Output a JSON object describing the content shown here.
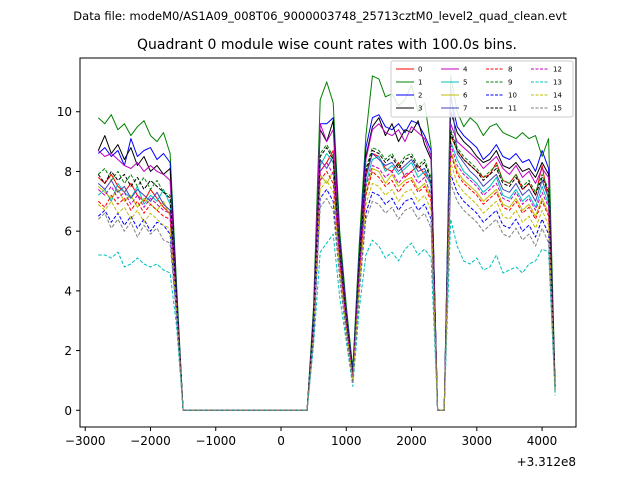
{
  "chart_data": {
    "type": "line",
    "suptitle": "Data file: modeM0/AS1A09_008T06_9000003748_25713cztM0_level2_quad_clean.evt",
    "title": "Quadrant 0 module wise count rates with 100.0s bins.",
    "xlabel": "",
    "ylabel": "",
    "x_offset_label": "+3.312e8",
    "xlim": [
      -3080,
      4520
    ],
    "ylim": [
      -0.56,
      11.8
    ],
    "xticks": [
      -3000,
      -2000,
      -1000,
      0,
      1000,
      2000,
      3000,
      4000
    ],
    "xtick_labels": [
      "−3000",
      "−2000",
      "−1000",
      "0",
      "1000",
      "2000",
      "3000",
      "4000"
    ],
    "yticks": [
      0,
      2,
      4,
      6,
      8,
      10
    ],
    "ytick_labels": [
      "0",
      "2",
      "4",
      "6",
      "8",
      "10"
    ],
    "legend_position": "upper right",
    "x": [
      -2800,
      -2700,
      -2600,
      -2500,
      -2400,
      -2300,
      -2200,
      -2100,
      -2000,
      -1900,
      -1800,
      -1700,
      -1600,
      -1500,
      -1400,
      -1300,
      -1200,
      -1100,
      -1000,
      -900,
      -800,
      -700,
      -600,
      -500,
      -400,
      -300,
      -200,
      -100,
      0,
      100,
      200,
      300,
      400,
      500,
      600,
      700,
      800,
      900,
      1000,
      1100,
      1200,
      1300,
      1400,
      1500,
      1600,
      1700,
      1800,
      1900,
      2000,
      2100,
      2200,
      2300,
      2400,
      2500,
      2600,
      2700,
      2800,
      2900,
      3000,
      3100,
      3200,
      3300,
      3400,
      3500,
      3600,
      3700,
      3800,
      3900,
      4000,
      4100,
      4200
    ],
    "series": [
      {
        "name": "0",
        "color": "#ff0000",
        "dash": false,
        "values": [
          7.8,
          7.6,
          7.9,
          7.5,
          7.3,
          7.6,
          7.2,
          7.0,
          7.4,
          7.1,
          6.8,
          6.6,
          3.8,
          0,
          0,
          0,
          0,
          0,
          0,
          0,
          0,
          0,
          0,
          0,
          0,
          0,
          0,
          0,
          0,
          0,
          0,
          0,
          0,
          3.0,
          8.0,
          8.3,
          8.7,
          5.4,
          3.2,
          1.3,
          4.9,
          7.9,
          8.6,
          8.5,
          8.1,
          8.0,
          8.3,
          7.8,
          8.0,
          8.2,
          7.9,
          7.6,
          0,
          0,
          9.2,
          8.7,
          8.4,
          8.2,
          8.0,
          7.8,
          7.9,
          8.3,
          7.7,
          7.6,
          7.9,
          7.4,
          7.6,
          7.2,
          8.2,
          7.0,
          0.8
        ]
      },
      {
        "name": "1",
        "color": "#008000",
        "dash": false,
        "values": [
          9.8,
          9.6,
          9.9,
          9.4,
          9.6,
          9.2,
          9.5,
          9.7,
          9.2,
          9.0,
          9.3,
          8.6,
          4.2,
          0,
          0,
          0,
          0,
          0,
          0,
          0,
          0,
          0,
          0,
          0,
          0,
          0,
          0,
          0,
          0,
          0,
          0,
          0,
          0,
          3.5,
          10.4,
          11.0,
          10.3,
          6.0,
          3.5,
          1.4,
          5.6,
          9.2,
          11.2,
          11.1,
          10.5,
          10.6,
          10.2,
          10.4,
          10.9,
          10.0,
          10.3,
          8.8,
          0,
          0,
          11.2,
          10.0,
          9.5,
          9.8,
          9.6,
          9.2,
          9.5,
          9.6,
          9.3,
          9.2,
          9.1,
          9.3,
          9.1,
          9.2,
          8.5,
          9.1,
          0.9
        ]
      },
      {
        "name": "2",
        "color": "#0000ff",
        "dash": false,
        "values": [
          8.6,
          8.8,
          8.5,
          8.7,
          8.2,
          9.1,
          8.5,
          8.7,
          8.8,
          8.4,
          8.6,
          8.3,
          3.9,
          0,
          0,
          0,
          0,
          0,
          0,
          0,
          0,
          0,
          0,
          0,
          0,
          0,
          0,
          0,
          0,
          0,
          0,
          0,
          0,
          3.2,
          9.6,
          9.6,
          9.8,
          5.7,
          3.3,
          1.3,
          5.2,
          8.8,
          9.8,
          9.9,
          9.5,
          9.4,
          9.6,
          9.3,
          9.7,
          9.6,
          9.2,
          8.7,
          0,
          0,
          10.5,
          9.5,
          9.2,
          9.0,
          8.8,
          8.4,
          8.6,
          8.9,
          8.5,
          8.4,
          8.6,
          8.3,
          8.4,
          8.0,
          8.7,
          8.1,
          0.8
        ]
      },
      {
        "name": "3",
        "color": "#000000",
        "dash": false,
        "values": [
          8.7,
          9.2,
          8.6,
          8.9,
          8.4,
          8.8,
          8.2,
          8.5,
          8.0,
          8.2,
          7.9,
          8.1,
          3.8,
          0,
          0,
          0,
          0,
          0,
          0,
          0,
          0,
          0,
          0,
          0,
          0,
          0,
          0,
          0,
          0,
          0,
          0,
          0,
          0,
          3.1,
          9.4,
          9.0,
          9.7,
          5.6,
          3.2,
          1.1,
          5.0,
          8.5,
          9.5,
          9.8,
          9.2,
          9.6,
          9.0,
          9.4,
          9.3,
          9.7,
          8.9,
          8.4,
          0,
          0,
          10.0,
          9.3,
          9.0,
          8.8,
          8.5,
          8.3,
          8.4,
          8.7,
          8.2,
          8.1,
          8.3,
          8.0,
          8.1,
          7.8,
          8.3,
          7.9,
          0.8
        ]
      },
      {
        "name": "4",
        "color": "#bf00bf",
        "dash": false,
        "values": [
          8.7,
          8.5,
          8.6,
          8.4,
          8.2,
          8.1,
          8.3,
          8.0,
          8.2,
          8.0,
          7.9,
          7.7,
          3.7,
          0,
          0,
          0,
          0,
          0,
          0,
          0,
          0,
          0,
          0,
          0,
          0,
          0,
          0,
          0,
          0,
          0,
          0,
          0,
          0,
          3.1,
          9.6,
          9.0,
          9.4,
          5.5,
          3.2,
          1.2,
          5.0,
          8.4,
          9.4,
          9.6,
          9.3,
          9.2,
          9.4,
          9.0,
          9.5,
          9.3,
          9.1,
          8.5,
          0,
          0,
          9.6,
          9.0,
          8.8,
          8.6,
          8.4,
          8.1,
          8.3,
          8.5,
          8.1,
          7.9,
          8.2,
          7.8,
          8.0,
          7.6,
          8.1,
          7.8,
          0.8
        ]
      },
      {
        "name": "5",
        "color": "#00bfbf",
        "dash": false,
        "values": [
          7.2,
          7.4,
          7.0,
          7.6,
          7.3,
          7.1,
          7.5,
          6.9,
          7.2,
          7.0,
          7.4,
          6.9,
          3.6,
          0,
          0,
          0,
          0,
          0,
          0,
          0,
          0,
          0,
          0,
          0,
          0,
          0,
          0,
          0,
          0,
          0,
          0,
          0,
          0,
          2.9,
          8.2,
          8.6,
          8.3,
          5.2,
          3.0,
          1.1,
          4.7,
          7.6,
          8.4,
          8.5,
          8.0,
          8.2,
          7.9,
          8.1,
          8.3,
          7.8,
          8.0,
          7.5,
          0,
          0,
          9.0,
          8.4,
          8.0,
          7.8,
          7.6,
          7.3,
          7.5,
          7.8,
          7.2,
          7.1,
          7.4,
          7.0,
          7.2,
          6.8,
          7.5,
          6.9,
          0.7
        ]
      },
      {
        "name": "6",
        "color": "#bfbf00",
        "dash": false,
        "values": [
          7.5,
          7.3,
          7.1,
          7.4,
          7.0,
          7.2,
          6.8,
          7.1,
          6.9,
          6.7,
          7.0,
          6.5,
          3.5,
          0,
          0,
          0,
          0,
          0,
          0,
          0,
          0,
          0,
          0,
          0,
          0,
          0,
          0,
          0,
          0,
          0,
          0,
          0,
          0,
          2.8,
          7.9,
          7.6,
          8.0,
          5.0,
          2.9,
          1.0,
          4.5,
          7.3,
          8.1,
          8.0,
          7.6,
          7.9,
          7.5,
          7.7,
          7.8,
          7.4,
          7.6,
          7.1,
          0,
          0,
          8.7,
          8.0,
          7.7,
          7.5,
          7.3,
          7.0,
          7.2,
          7.4,
          6.9,
          6.8,
          7.1,
          6.7,
          6.9,
          6.5,
          7.1,
          6.6,
          0.7
        ]
      },
      {
        "name": "7",
        "color": "#4444bb",
        "dash": false,
        "values": [
          7.6,
          7.4,
          7.7,
          7.3,
          7.5,
          7.1,
          7.4,
          7.2,
          7.0,
          7.3,
          6.9,
          6.7,
          3.6,
          0,
          0,
          0,
          0,
          0,
          0,
          0,
          0,
          0,
          0,
          0,
          0,
          0,
          0,
          0,
          0,
          0,
          0,
          0,
          0,
          2.9,
          8.4,
          8.1,
          8.5,
          5.3,
          3.0,
          1.2,
          4.8,
          7.8,
          8.6,
          8.4,
          8.2,
          8.3,
          8.0,
          8.2,
          8.4,
          8.0,
          8.1,
          7.6,
          0,
          0,
          10.8,
          8.6,
          8.3,
          8.0,
          7.8,
          7.5,
          7.7,
          7.9,
          7.4,
          7.3,
          7.6,
          7.2,
          7.4,
          7.0,
          7.7,
          7.1,
          0.7
        ]
      },
      {
        "name": "8",
        "color": "#ff0000",
        "dash": true,
        "values": [
          7.0,
          6.8,
          7.2,
          6.9,
          7.1,
          6.7,
          7.0,
          6.6,
          6.9,
          6.7,
          6.5,
          6.4,
          3.4,
          0,
          0,
          0,
          0,
          0,
          0,
          0,
          0,
          0,
          0,
          0,
          0,
          0,
          0,
          0,
          0,
          0,
          0,
          0,
          0,
          2.7,
          7.7,
          8.0,
          7.6,
          4.9,
          2.8,
          1.0,
          4.4,
          7.2,
          8.0,
          7.8,
          7.5,
          7.7,
          7.3,
          7.6,
          7.7,
          7.3,
          7.5,
          7.0,
          0,
          0,
          8.6,
          7.9,
          7.6,
          7.4,
          7.2,
          6.9,
          7.1,
          7.3,
          6.8,
          6.7,
          7.0,
          6.6,
          6.8,
          6.4,
          7.0,
          6.5,
          0.7
        ]
      },
      {
        "name": "9",
        "color": "#008000",
        "dash": true,
        "values": [
          7.9,
          8.1,
          7.7,
          8.0,
          7.6,
          7.9,
          7.5,
          7.8,
          7.4,
          7.7,
          7.3,
          7.2,
          3.7,
          0,
          0,
          0,
          0,
          0,
          0,
          0,
          0,
          0,
          0,
          0,
          0,
          0,
          0,
          0,
          0,
          0,
          0,
          0,
          0,
          3.0,
          8.6,
          8.9,
          8.5,
          5.4,
          3.1,
          1.2,
          4.9,
          8.1,
          8.8,
          8.7,
          8.4,
          8.6,
          8.2,
          8.5,
          8.6,
          8.2,
          8.4,
          7.8,
          0,
          0,
          9.4,
          8.8,
          8.5,
          8.3,
          8.1,
          7.8,
          8.0,
          8.2,
          7.7,
          7.6,
          7.9,
          7.5,
          7.7,
          7.3,
          7.9,
          7.4,
          0.8
        ]
      },
      {
        "name": "10",
        "color": "#0000ff",
        "dash": true,
        "values": [
          6.5,
          6.7,
          6.3,
          6.6,
          6.2,
          6.5,
          6.1,
          6.4,
          6.0,
          6.3,
          6.2,
          5.9,
          3.2,
          0,
          0,
          0,
          0,
          0,
          0,
          0,
          0,
          0,
          0,
          0,
          0,
          0,
          0,
          0,
          0,
          0,
          0,
          0,
          0,
          2.5,
          7.1,
          7.4,
          7.0,
          4.5,
          2.6,
          0.9,
          4.0,
          6.6,
          7.3,
          7.2,
          6.9,
          7.1,
          6.7,
          7.0,
          7.1,
          6.7,
          6.9,
          6.4,
          0,
          0,
          7.9,
          7.3,
          7.0,
          6.8,
          6.6,
          6.3,
          6.5,
          6.7,
          6.2,
          6.1,
          6.4,
          6.0,
          6.2,
          5.8,
          6.4,
          5.9,
          0.6
        ]
      },
      {
        "name": "11",
        "color": "#000000",
        "dash": true,
        "values": [
          7.9,
          7.6,
          8.0,
          7.7,
          7.9,
          7.5,
          7.8,
          7.4,
          7.7,
          7.5,
          7.3,
          7.1,
          3.7,
          0,
          0,
          0,
          0,
          0,
          0,
          0,
          0,
          0,
          0,
          0,
          0,
          0,
          0,
          0,
          0,
          0,
          0,
          0,
          0,
          3.0,
          8.5,
          8.8,
          8.4,
          5.3,
          3.1,
          1.2,
          4.9,
          8.0,
          8.7,
          8.6,
          8.3,
          8.5,
          8.1,
          8.4,
          8.5,
          8.1,
          8.3,
          7.7,
          0,
          0,
          9.3,
          8.7,
          8.4,
          8.2,
          8.0,
          7.7,
          7.9,
          8.1,
          7.6,
          7.5,
          7.8,
          7.4,
          7.6,
          7.2,
          7.8,
          7.3,
          0.8
        ]
      },
      {
        "name": "12",
        "color": "#bf00bf",
        "dash": true,
        "values": [
          7.4,
          7.2,
          7.5,
          7.1,
          7.3,
          6.9,
          7.2,
          6.8,
          7.1,
          6.9,
          6.7,
          6.6,
          3.5,
          0,
          0,
          0,
          0,
          0,
          0,
          0,
          0,
          0,
          0,
          0,
          0,
          0,
          0,
          0,
          0,
          0,
          0,
          0,
          0,
          2.8,
          8.0,
          8.3,
          7.9,
          5.1,
          2.9,
          1.1,
          4.6,
          7.5,
          8.2,
          8.1,
          7.8,
          8.0,
          7.6,
          7.9,
          8.0,
          7.6,
          7.8,
          7.2,
          0,
          0,
          8.9,
          8.2,
          7.9,
          7.7,
          7.5,
          7.2,
          7.4,
          7.6,
          7.1,
          7.0,
          7.3,
          6.9,
          7.1,
          6.7,
          7.3,
          6.8,
          0.7
        ]
      },
      {
        "name": "13",
        "color": "#00bfbf",
        "dash": true,
        "values": [
          5.2,
          5.2,
          5.1,
          5.3,
          4.8,
          4.9,
          5.1,
          4.9,
          4.8,
          4.9,
          4.7,
          4.6,
          2.8,
          0,
          0,
          0,
          0,
          0,
          0,
          0,
          0,
          0,
          0,
          0,
          0,
          0,
          0,
          0,
          0,
          0,
          0,
          0,
          0,
          2.2,
          5.3,
          5.6,
          5.9,
          3.8,
          2.3,
          0.8,
          3.4,
          5.2,
          5.7,
          5.5,
          5.1,
          5.3,
          5.0,
          5.4,
          5.6,
          5.2,
          5.4,
          5.1,
          0,
          0,
          6.4,
          5.5,
          5.0,
          4.9,
          5.1,
          4.7,
          4.8,
          5.2,
          4.6,
          4.7,
          4.8,
          4.6,
          4.9,
          5.0,
          5.4,
          5.3,
          0.5
        ]
      },
      {
        "name": "14",
        "color": "#bfbf00",
        "dash": true,
        "values": [
          6.9,
          6.7,
          7.0,
          6.6,
          6.8,
          6.4,
          6.7,
          6.3,
          6.6,
          6.4,
          6.2,
          6.1,
          3.3,
          0,
          0,
          0,
          0,
          0,
          0,
          0,
          0,
          0,
          0,
          0,
          0,
          0,
          0,
          0,
          0,
          0,
          0,
          0,
          0,
          2.6,
          7.4,
          7.7,
          7.3,
          4.7,
          2.7,
          1.0,
          4.2,
          6.9,
          7.6,
          7.5,
          7.2,
          7.4,
          7.0,
          7.3,
          7.4,
          7.0,
          7.2,
          6.7,
          0,
          0,
          8.3,
          7.6,
          7.3,
          7.1,
          6.9,
          6.6,
          6.8,
          7.0,
          6.5,
          6.4,
          6.7,
          6.3,
          6.5,
          6.1,
          6.7,
          6.2,
          0.6
        ]
      },
      {
        "name": "15",
        "color": "#808080",
        "dash": true,
        "values": [
          6.4,
          6.6,
          6.1,
          6.4,
          6.0,
          6.3,
          5.8,
          6.2,
          5.9,
          6.1,
          5.7,
          5.6,
          3.1,
          0,
          0,
          0,
          0,
          0,
          0,
          0,
          0,
          0,
          0,
          0,
          0,
          0,
          0,
          0,
          0,
          0,
          0,
          0,
          0,
          2.4,
          6.8,
          7.1,
          6.7,
          4.4,
          2.5,
          0.9,
          3.9,
          6.4,
          7.0,
          6.9,
          6.6,
          6.8,
          6.4,
          6.7,
          6.8,
          6.4,
          6.6,
          6.1,
          0,
          0,
          7.6,
          7.0,
          6.7,
          6.5,
          6.3,
          6.0,
          6.2,
          6.4,
          5.9,
          5.8,
          6.1,
          5.7,
          5.9,
          5.5,
          6.1,
          5.6,
          0.6
        ]
      }
    ]
  }
}
